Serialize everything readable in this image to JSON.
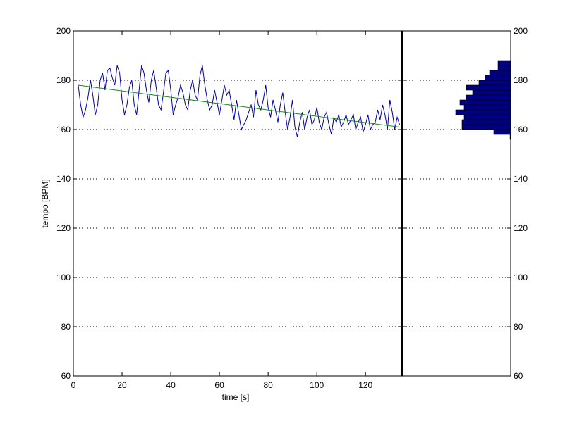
{
  "chart_data": {
    "type": "line",
    "xlabel": "time [s]",
    "ylabel": "tempo [BPM]",
    "xlim": [
      0,
      135
    ],
    "ylim": [
      60,
      200
    ],
    "x_ticks": [
      0,
      20,
      40,
      60,
      80,
      100,
      120
    ],
    "y_ticks": [
      60,
      80,
      100,
      120,
      140,
      160,
      180,
      200
    ],
    "y_ticks_right": [
      60,
      80,
      100,
      120,
      140,
      160,
      180,
      200
    ],
    "grid": "horizontal-dotted",
    "vertical_marker_x": 135,
    "series": [
      {
        "color": "#0000aa",
        "x": [
          2,
          3,
          4,
          5,
          6,
          7,
          8,
          9,
          10,
          11,
          12,
          13,
          14,
          15,
          16,
          17,
          18,
          19,
          20,
          21,
          22,
          23,
          24,
          25,
          26,
          27,
          28,
          29,
          30,
          31,
          32,
          33,
          34,
          35,
          36,
          37,
          38,
          39,
          40,
          41,
          42,
          43,
          44,
          45,
          46,
          47,
          48,
          49,
          50,
          51,
          52,
          53,
          54,
          55,
          56,
          57,
          58,
          59,
          60,
          61,
          62,
          63,
          64,
          65,
          66,
          67,
          68,
          69,
          70,
          71,
          72,
          73,
          74,
          75,
          76,
          77,
          78,
          79,
          80,
          81,
          82,
          83,
          84,
          85,
          86,
          87,
          88,
          89,
          90,
          91,
          92,
          93,
          94,
          95,
          96,
          97,
          98,
          99,
          100,
          101,
          102,
          103,
          104,
          105,
          106,
          107,
          108,
          109,
          110,
          111,
          112,
          113,
          114,
          115,
          116,
          117,
          118,
          119,
          120,
          121,
          122,
          123,
          124,
          125,
          126,
          127,
          128,
          129,
          130,
          131,
          132,
          133,
          134
        ],
        "y": [
          178,
          170,
          165,
          168,
          173,
          180,
          174,
          166,
          170,
          180,
          183,
          176,
          184,
          185,
          181,
          178,
          186,
          183,
          172,
          166,
          170,
          177,
          180,
          170,
          166,
          176,
          186,
          183,
          176,
          171,
          180,
          184,
          177,
          170,
          168,
          175,
          183,
          184,
          176,
          166,
          170,
          173,
          178,
          175,
          170,
          168,
          176,
          180,
          174,
          172,
          182,
          186,
          178,
          172,
          168,
          170,
          176,
          171,
          166,
          172,
          178,
          174,
          176,
          170,
          164,
          172,
          166,
          160,
          162,
          164,
          167,
          170,
          165,
          176,
          170,
          168,
          172,
          178,
          169,
          165,
          172,
          168,
          163,
          170,
          175,
          167,
          160,
          165,
          172,
          161,
          157,
          163,
          167,
          160,
          165,
          168,
          162,
          164,
          169,
          163,
          160,
          165,
          167,
          162,
          158,
          165,
          163,
          166,
          161,
          163,
          166,
          162,
          164,
          166,
          160,
          163,
          165,
          159,
          162,
          166,
          160,
          162,
          163,
          168,
          164,
          170,
          166,
          160,
          172,
          167,
          160,
          165,
          162
        ],
        "name": ""
      },
      {
        "color": "#1a8a1a",
        "x": [
          2,
          134
        ],
        "y": [
          178,
          161
        ],
        "name": ""
      }
    ],
    "histogram": {
      "color": "#000080",
      "bin_edges": [
        156,
        158,
        160,
        162,
        164,
        166,
        168,
        170,
        172,
        174,
        176,
        178,
        180,
        182,
        184,
        186,
        188
      ],
      "counts": [
        0.3,
        8,
        23,
        23,
        22,
        26,
        22,
        24,
        21,
        18,
        21,
        15,
        12,
        10,
        6,
        6,
        0
      ]
    }
  }
}
